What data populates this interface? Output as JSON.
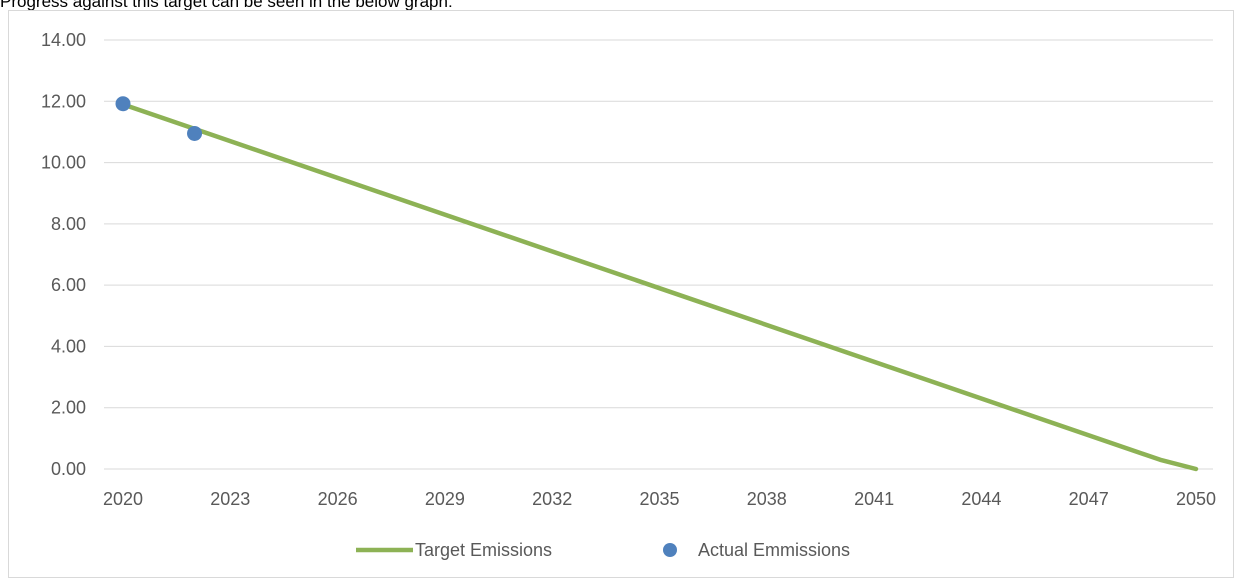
{
  "caption": "Progress against this target can be seen in the below graph:",
  "colors": {
    "target": "#8db255",
    "actual": "#4f81bd",
    "grid": "#d9d9d9",
    "text": "#595959"
  },
  "chart_data": {
    "type": "line",
    "x_ticks": [
      2020,
      2023,
      2026,
      2029,
      2032,
      2035,
      2038,
      2041,
      2044,
      2047,
      2050
    ],
    "y_ticks": [
      "0.00",
      "2.00",
      "4.00",
      "6.00",
      "8.00",
      "10.00",
      "12.00",
      "14.00"
    ],
    "xlim": [
      2020,
      2050
    ],
    "ylim": [
      0,
      14
    ],
    "grid": true,
    "legend_position": "bottom",
    "series": [
      {
        "name": "Target Emissions",
        "style": "line",
        "x": [
          2020,
          2049,
          2050
        ],
        "y": [
          11.9,
          0.3,
          0.0
        ]
      },
      {
        "name": "Actual Emmissions",
        "style": "markers",
        "x": [
          2020,
          2022
        ],
        "y": [
          11.92,
          10.95
        ]
      }
    ]
  }
}
